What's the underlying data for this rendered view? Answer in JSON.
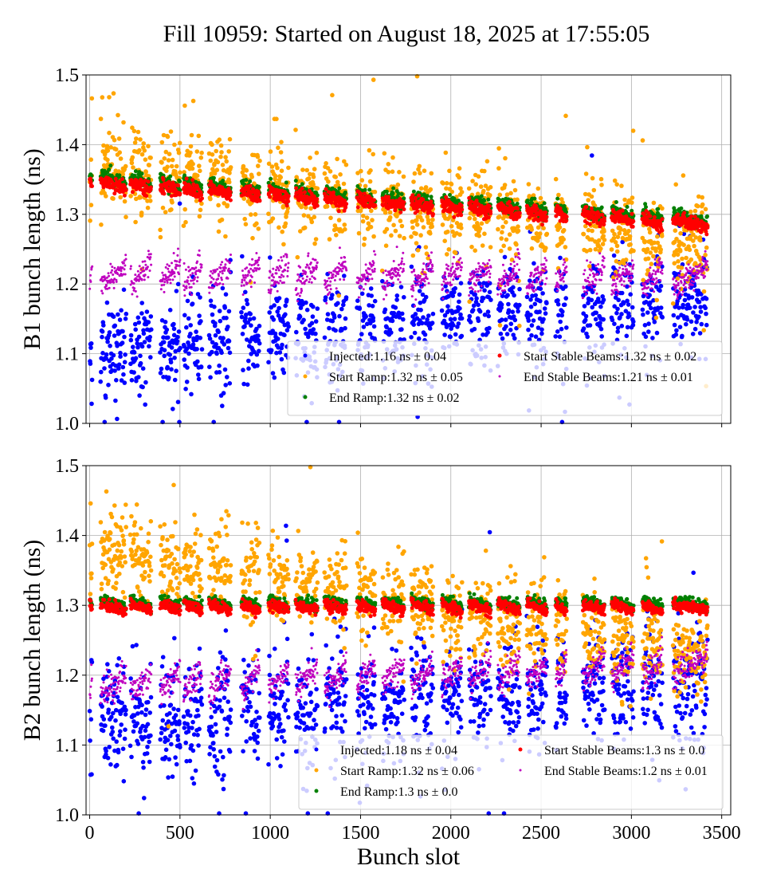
{
  "title": "Fill 10959: Started on August 18, 2025 at 17:55:05",
  "chart_data": [
    {
      "type": "scatter",
      "ylabel": "B1 bunch length (ns)",
      "xlabel": "",
      "xlim": [
        -20,
        3550
      ],
      "ylim": [
        1.0,
        1.5
      ],
      "xticks": [
        0,
        500,
        1000,
        1500,
        2000,
        2500,
        3000,
        3500
      ],
      "xtick_labels_shown": false,
      "yticks": [
        "1.0",
        "1.1",
        "1.2",
        "1.3",
        "1.4",
        "1.5"
      ],
      "grid": true,
      "legend_position": "lower-right",
      "bunch_trains": [
        [
          0,
          12
        ],
        [
          60,
          200
        ],
        [
          225,
          340
        ],
        [
          390,
          500
        ],
        [
          520,
          620
        ],
        [
          660,
          780
        ],
        [
          840,
          940
        ],
        [
          990,
          1100
        ],
        [
          1140,
          1260
        ],
        [
          1300,
          1420
        ],
        [
          1480,
          1580
        ],
        [
          1620,
          1740
        ],
        [
          1780,
          1900
        ],
        [
          1950,
          2060
        ],
        [
          2100,
          2220
        ],
        [
          2260,
          2380
        ],
        [
          2420,
          2530
        ],
        [
          2580,
          2640
        ],
        [
          2730,
          2850
        ],
        [
          2890,
          3010
        ],
        [
          3060,
          3170
        ],
        [
          3230,
          3420
        ]
      ],
      "series": [
        {
          "name": "Injected:1.16 ns ± 0.04",
          "color": "#0000ff",
          "y_at_first_bunch": 1.1,
          "y_at_last_bunch": 1.18,
          "spread": 0.035
        },
        {
          "name": "Start Ramp:1.32 ns ± 0.05",
          "color": "#ffa500",
          "y_at_first_bunch": 1.37,
          "y_at_last_bunch": 1.26,
          "spread": 0.03
        },
        {
          "name": "End Ramp:1.32 ns ± 0.02",
          "color": "#008000",
          "y_at_first_bunch": 1.352,
          "y_at_last_bunch": 1.292,
          "spread": 0.005
        },
        {
          "name": "Start Stable Beams:1.32 ns ± 0.02",
          "color": "#ff0000",
          "y_at_first_bunch": 1.345,
          "y_at_last_bunch": 1.285,
          "spread": 0.005
        },
        {
          "name": "End Stable Beams:1.21 ns ± 0.01",
          "color": "#bf00bf",
          "y_at_first_bunch": 1.215,
          "y_at_last_bunch": 1.21,
          "spread": 0.01
        }
      ]
    },
    {
      "type": "scatter",
      "ylabel": "B2 bunch length (ns)",
      "xlabel": "Bunch slot",
      "xlim": [
        -20,
        3550
      ],
      "ylim": [
        1.0,
        1.5
      ],
      "xticks": [
        0,
        500,
        1000,
        1500,
        2000,
        2500,
        3000,
        3500
      ],
      "xtick_labels": [
        "0",
        "500",
        "1000",
        "1500",
        "2000",
        "2500",
        "3000",
        "3500"
      ],
      "yticks": [
        "1.0",
        "1.1",
        "1.2",
        "1.3",
        "1.4",
        "1.5"
      ],
      "grid": true,
      "legend_position": "lower-right",
      "bunch_trains": [
        [
          0,
          12
        ],
        [
          60,
          200
        ],
        [
          225,
          340
        ],
        [
          390,
          500
        ],
        [
          520,
          620
        ],
        [
          660,
          780
        ],
        [
          840,
          940
        ],
        [
          990,
          1100
        ],
        [
          1140,
          1260
        ],
        [
          1300,
          1420
        ],
        [
          1480,
          1580
        ],
        [
          1620,
          1740
        ],
        [
          1780,
          1900
        ],
        [
          1950,
          2060
        ],
        [
          2100,
          2220
        ],
        [
          2260,
          2380
        ],
        [
          2420,
          2530
        ],
        [
          2580,
          2640
        ],
        [
          2730,
          2850
        ],
        [
          2890,
          3010
        ],
        [
          3060,
          3170
        ],
        [
          3230,
          3420
        ]
      ],
      "series": [
        {
          "name": "Injected:1.18 ns ± 0.04",
          "color": "#0000ff",
          "y_at_first_bunch": 1.13,
          "y_at_last_bunch": 1.19,
          "spread": 0.04
        },
        {
          "name": "Start Ramp:1.32 ns ± 0.06",
          "color": "#ffa500",
          "y_at_first_bunch": 1.38,
          "y_at_last_bunch": 1.23,
          "spread": 0.03
        },
        {
          "name": "End Ramp:1.3 ns ± 0.0",
          "color": "#008000",
          "y_at_first_bunch": 1.303,
          "y_at_last_bunch": 1.303,
          "spread": 0.004
        },
        {
          "name": "Start Stable Beams:1.3 ns ± 0.0",
          "color": "#ff0000",
          "y_at_first_bunch": 1.297,
          "y_at_last_bunch": 1.297,
          "spread": 0.004
        },
        {
          "name": "End Stable Beams:1.2 ns ± 0.01",
          "color": "#bf00bf",
          "y_at_first_bunch": 1.185,
          "y_at_last_bunch": 1.215,
          "spread": 0.01
        }
      ]
    }
  ]
}
